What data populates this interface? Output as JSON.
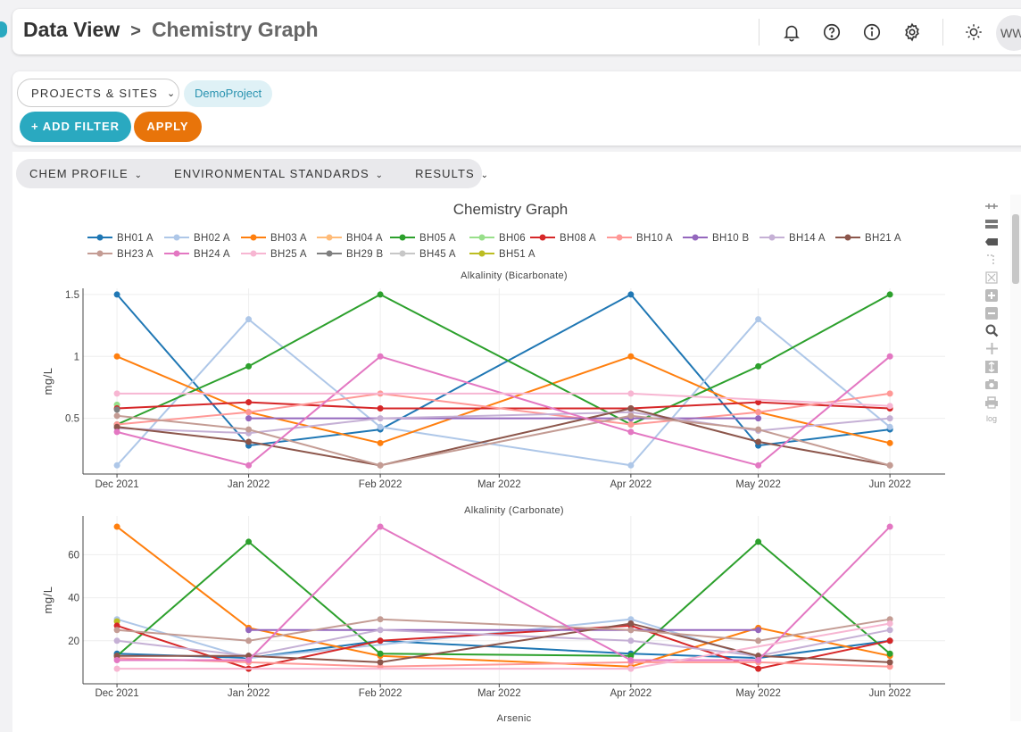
{
  "breadcrumb": {
    "root": "Data View",
    "separator": ">",
    "current": "Chemistry Graph"
  },
  "user": {
    "initials": "WW"
  },
  "filters": {
    "projects_label": "PROJECTS & SITES",
    "chip": "DemoProject",
    "add_filter": "+ ADD FILTER",
    "apply": "APPLY"
  },
  "tabs": [
    {
      "label": "CHEM PROFILE"
    },
    {
      "label": "ENVIRONMENTAL STANDARDS"
    },
    {
      "label": "RESULTS"
    }
  ],
  "modebar": {
    "log_label": "log"
  },
  "colors": {
    "accent": "#2aa9c0",
    "apply": "#e8740a"
  },
  "chart_data": {
    "type": "line",
    "title": "Chemistry Graph",
    "legend": [
      {
        "name": "BH01 A",
        "color": "#1f77b4"
      },
      {
        "name": "BH02 A",
        "color": "#aec7e8"
      },
      {
        "name": "BH03 A",
        "color": "#ff7f0e"
      },
      {
        "name": "BH04 A",
        "color": "#ffbb78"
      },
      {
        "name": "BH05 A",
        "color": "#2ca02c"
      },
      {
        "name": "BH06",
        "color": "#98df8a"
      },
      {
        "name": "BH08 A",
        "color": "#d62728"
      },
      {
        "name": "BH10 A",
        "color": "#ff9896"
      },
      {
        "name": "BH10 B",
        "color": "#9467bd"
      },
      {
        "name": "BH14 A",
        "color": "#c5b0d5"
      },
      {
        "name": "BH21 A",
        "color": "#8c564b"
      },
      {
        "name": "BH23 A",
        "color": "#c49c94"
      },
      {
        "name": "BH24 A",
        "color": "#e377c2"
      },
      {
        "name": "BH25 A",
        "color": "#f7b6d2"
      },
      {
        "name": "BH29 B",
        "color": "#7f7f7f"
      },
      {
        "name": "BH45 A",
        "color": "#c7c7c7"
      },
      {
        "name": "BH51 A",
        "color": "#bcbd22"
      }
    ],
    "x_ticks": [
      "Dec 2021",
      "Jan 2022",
      "Feb 2022",
      "Mar 2022",
      "Apr 2022",
      "May 2022",
      "Jun 2022"
    ],
    "x_range": [
      "2021-11-23",
      "2022-06-14"
    ],
    "subplots": [
      {
        "title": "Alkalinity (Bicarbonate)",
        "ylabel": "mg/L",
        "ylim": [
          0.05,
          1.55
        ],
        "y_ticks": [
          0.5,
          1,
          1.5
        ],
        "y_tick_labels": [
          "0.5",
          "1",
          "1.5"
        ],
        "series": [
          {
            "name": "BH01 A",
            "x": [
              "2021-12-01",
              "2022-01-01",
              "2022-02-01",
              "2022-04-01",
              "2022-05-01",
              "2022-06-01"
            ],
            "y": [
              1.5,
              0.28,
              0.41,
              1.5,
              0.28,
              0.41
            ]
          },
          {
            "name": "BH02 A",
            "x": [
              "2021-12-01",
              "2022-01-01",
              "2022-02-01",
              "2022-04-01",
              "2022-05-01",
              "2022-06-01"
            ],
            "y": [
              0.12,
              1.3,
              0.43,
              0.12,
              1.3,
              0.43
            ]
          },
          {
            "name": "BH03 A",
            "x": [
              "2021-12-01",
              "2022-01-01",
              "2022-02-01",
              "2022-04-01",
              "2022-05-01",
              "2022-06-01"
            ],
            "y": [
              1.0,
              0.55,
              0.3,
              1.0,
              0.55,
              0.3
            ]
          },
          {
            "name": "BH05 A",
            "x": [
              "2021-12-01",
              "2022-01-01",
              "2022-02-01",
              "2022-04-01",
              "2022-05-01",
              "2022-06-01"
            ],
            "y": [
              0.45,
              0.92,
              1.5,
              0.45,
              0.92,
              1.5
            ]
          },
          {
            "name": "BH06",
            "x": [
              "2021-12-01"
            ],
            "y": [
              0.61
            ]
          },
          {
            "name": "BH08 A",
            "x": [
              "2021-12-01",
              "2022-01-01",
              "2022-02-01",
              "2022-04-01",
              "2022-05-01",
              "2022-06-01"
            ],
            "y": [
              0.58,
              0.63,
              0.58,
              0.58,
              0.63,
              0.58
            ]
          },
          {
            "name": "BH10 A",
            "x": [
              "2021-12-01",
              "2022-01-01",
              "2022-02-01",
              "2022-04-01",
              "2022-05-01",
              "2022-06-01"
            ],
            "y": [
              0.45,
              0.55,
              0.7,
              0.45,
              0.55,
              0.7
            ]
          },
          {
            "name": "BH10 B",
            "x": [
              "2022-01-01",
              "2022-04-01",
              "2022-05-01"
            ],
            "y": [
              0.5,
              0.5,
              0.5
            ]
          },
          {
            "name": "BH14 A",
            "x": [
              "2021-12-01",
              "2022-01-01",
              "2022-02-01",
              "2022-04-01",
              "2022-05-01",
              "2022-06-01"
            ],
            "y": [
              0.42,
              0.38,
              0.5,
              0.55,
              0.4,
              0.5
            ]
          },
          {
            "name": "BH21 A",
            "x": [
              "2021-12-01",
              "2022-01-01",
              "2022-02-01",
              "2022-04-01",
              "2022-05-01",
              "2022-06-01"
            ],
            "y": [
              0.43,
              0.31,
              0.12,
              0.58,
              0.31,
              0.12
            ]
          },
          {
            "name": "BH23 A",
            "x": [
              "2021-12-01",
              "2022-01-01",
              "2022-02-01",
              "2022-04-01",
              "2022-05-01",
              "2022-06-01"
            ],
            "y": [
              0.52,
              0.41,
              0.12,
              0.52,
              0.41,
              0.12
            ]
          },
          {
            "name": "BH24 A",
            "x": [
              "2021-12-01",
              "2022-01-01",
              "2022-02-01",
              "2022-04-01",
              "2022-05-01",
              "2022-06-01"
            ],
            "y": [
              0.39,
              0.12,
              1.0,
              0.39,
              0.12,
              1.0
            ]
          },
          {
            "name": "BH25 A",
            "x": [
              "2021-12-01",
              "2022-04-01",
              "2022-06-01"
            ],
            "y": [
              0.7,
              0.7,
              0.6
            ]
          },
          {
            "name": "BH29 B",
            "x": [
              "2021-12-01"
            ],
            "y": [
              0.57
            ]
          }
        ]
      },
      {
        "title": "Alkalinity (Carbonate)",
        "ylabel": "mg/L",
        "ylim": [
          0,
          78
        ],
        "y_ticks": [
          20,
          40,
          60
        ],
        "y_tick_labels": [
          "20",
          "40",
          "60"
        ],
        "series": [
          {
            "name": "BH01 A",
            "x": [
              "2021-12-01",
              "2022-01-01",
              "2022-02-01",
              "2022-04-01",
              "2022-05-01",
              "2022-06-01"
            ],
            "y": [
              14,
              12,
              20,
              14,
              12,
              20
            ]
          },
          {
            "name": "BH02 A",
            "x": [
              "2021-12-01",
              "2022-01-01",
              "2022-04-01",
              "2022-05-01"
            ],
            "y": [
              30,
              12,
              30,
              12
            ]
          },
          {
            "name": "BH03 A",
            "x": [
              "2021-12-01",
              "2022-01-01",
              "2022-02-01",
              "2022-04-01",
              "2022-05-01",
              "2022-06-01"
            ],
            "y": [
              73,
              26,
              13,
              8,
              26,
              13
            ]
          },
          {
            "name": "BH05 A",
            "x": [
              "2021-12-01",
              "2022-01-01",
              "2022-02-01",
              "2022-04-01",
              "2022-05-01",
              "2022-06-01"
            ],
            "y": [
              13,
              66,
              14,
              13,
              66,
              14
            ]
          },
          {
            "name": "BH51 A",
            "x": [
              "2021-12-01"
            ],
            "y": [
              29
            ]
          },
          {
            "name": "BH08 A",
            "x": [
              "2021-12-01",
              "2022-01-01",
              "2022-02-01",
              "2022-04-01",
              "2022-05-01",
              "2022-06-01"
            ],
            "y": [
              27,
              7,
              20,
              27,
              7,
              20
            ]
          },
          {
            "name": "BH10 A",
            "x": [
              "2021-12-01",
              "2022-01-01",
              "2022-02-01",
              "2022-04-01",
              "2022-05-01",
              "2022-06-01"
            ],
            "y": [
              12,
              10,
              8,
              10,
              10,
              8
            ]
          },
          {
            "name": "BH10 B",
            "x": [
              "2022-01-01",
              "2022-04-01",
              "2022-05-01"
            ],
            "y": [
              25,
              25,
              25
            ]
          },
          {
            "name": "BH14 A",
            "x": [
              "2021-12-01",
              "2022-01-01",
              "2022-02-01",
              "2022-04-01",
              "2022-05-01",
              "2022-06-01"
            ],
            "y": [
              20,
              13,
              25,
              20,
              13,
              25
            ]
          },
          {
            "name": "BH21 A",
            "x": [
              "2021-12-01",
              "2022-01-01",
              "2022-02-01",
              "2022-04-01",
              "2022-05-01",
              "2022-06-01"
            ],
            "y": [
              13,
              13,
              10,
              28,
              13,
              10
            ]
          },
          {
            "name": "BH23 A",
            "x": [
              "2021-12-01",
              "2022-01-01",
              "2022-02-01",
              "2022-04-01",
              "2022-05-01",
              "2022-06-01"
            ],
            "y": [
              25,
              20,
              30,
              25,
              20,
              30
            ]
          },
          {
            "name": "BH24 A",
            "x": [
              "2021-12-01",
              "2022-01-01",
              "2022-02-01",
              "2022-04-01",
              "2022-05-01",
              "2022-06-01"
            ],
            "y": [
              11,
              11,
              73,
              11,
              11,
              73
            ]
          },
          {
            "name": "BH25 A",
            "x": [
              "2021-12-01",
              "2022-04-01",
              "2022-06-01"
            ],
            "y": [
              7,
              7,
              28
            ]
          }
        ]
      },
      {
        "title": "Arsenic",
        "ylabel": "",
        "ylim": [
          0,
          1
        ],
        "y_ticks": [],
        "y_tick_labels": [],
        "series": []
      }
    ]
  }
}
